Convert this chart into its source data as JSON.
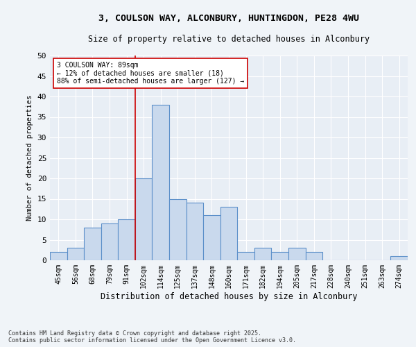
{
  "title_line1": "3, COULSON WAY, ALCONBURY, HUNTINGDON, PE28 4WU",
  "title_line2": "Size of property relative to detached houses in Alconbury",
  "xlabel": "Distribution of detached houses by size in Alconbury",
  "ylabel": "Number of detached properties",
  "categories": [
    "45sqm",
    "56sqm",
    "68sqm",
    "79sqm",
    "91sqm",
    "102sqm",
    "114sqm",
    "125sqm",
    "137sqm",
    "148sqm",
    "160sqm",
    "171sqm",
    "182sqm",
    "194sqm",
    "205sqm",
    "217sqm",
    "228sqm",
    "240sqm",
    "251sqm",
    "263sqm",
    "274sqm"
  ],
  "values": [
    2,
    3,
    8,
    9,
    10,
    20,
    38,
    15,
    14,
    11,
    13,
    2,
    3,
    2,
    3,
    2,
    0,
    0,
    0,
    0,
    1
  ],
  "bar_color": "#c9d9ed",
  "bar_edge_color": "#5b8fc9",
  "vline_x": 4.5,
  "vline_color": "#cc0000",
  "annotation_text": "3 COULSON WAY: 89sqm\n← 12% of detached houses are smaller (18)\n88% of semi-detached houses are larger (127) →",
  "annotation_box_color": "#ffffff",
  "annotation_box_edge": "#cc0000",
  "ylim": [
    0,
    50
  ],
  "yticks": [
    0,
    5,
    10,
    15,
    20,
    25,
    30,
    35,
    40,
    45,
    50
  ],
  "footnote": "Contains HM Land Registry data © Crown copyright and database right 2025.\nContains public sector information licensed under the Open Government Licence v3.0.",
  "bg_color": "#e8eef5",
  "fig_bg_color": "#f0f4f8"
}
